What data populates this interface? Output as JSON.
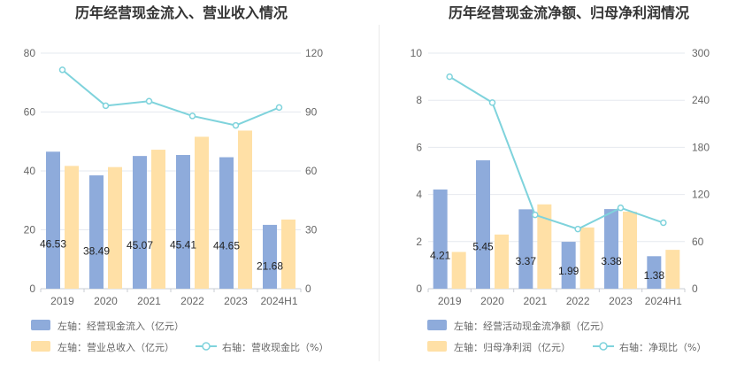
{
  "charts": [
    {
      "title": "历年经营现金流入、营业收入情况",
      "legend": [
        {
          "label": "左轴：经营现金流入（亿元）",
          "kind": "bar",
          "color": "#8eabdb"
        },
        {
          "label": "左轴：营业总收入（亿元）",
          "kind": "bar",
          "color": "#ffe0a6"
        },
        {
          "label": "右轴：营收现金比（%）",
          "kind": "line",
          "color": "#7fd3dc"
        }
      ]
    },
    {
      "title": "历年经营现金流净额、归母净利润情况",
      "legend": [
        {
          "label": "左轴：经营活动现金流净额（亿元）",
          "kind": "bar",
          "color": "#8eabdb"
        },
        {
          "label": "左轴：归母净利润（亿元）",
          "kind": "bar",
          "color": "#ffe0a6"
        },
        {
          "label": "右轴：净现比（%）",
          "kind": "line",
          "color": "#7fd3dc"
        }
      ]
    }
  ],
  "chart_data": [
    {
      "type": "bar",
      "title": "历年经营现金流入、营业收入情况",
      "categories": [
        "2019",
        "2020",
        "2021",
        "2022",
        "2023",
        "2024H1"
      ],
      "series": [
        {
          "name": "左轴：经营现金流入（亿元）",
          "axis": "left",
          "type": "bar",
          "color": "#8eabdb",
          "values": [
            46.53,
            38.49,
            45.07,
            45.41,
            44.65,
            21.68
          ],
          "labels": [
            "46.53",
            "38.49",
            "45.07",
            "45.41",
            "44.65",
            "21.68"
          ]
        },
        {
          "name": "左轴：营业总收入（亿元）",
          "axis": "left",
          "type": "bar",
          "color": "#ffe0a6",
          "values": [
            41.7,
            41.3,
            47.2,
            51.6,
            53.7,
            23.5
          ]
        },
        {
          "name": "右轴：营收现金比（%）",
          "axis": "right",
          "type": "line",
          "color": "#7fd3dc",
          "values": [
            111.5,
            93.2,
            95.5,
            88.0,
            83.2,
            92.3
          ]
        }
      ],
      "left_axis": {
        "min": 0,
        "max": 80,
        "ticks": [
          "0",
          "20",
          "40",
          "60",
          "80"
        ]
      },
      "right_axis": {
        "min": 0,
        "max": 120,
        "ticks": [
          "0",
          "30",
          "60",
          "90",
          "120"
        ]
      },
      "grid": true,
      "legend_position": "bottom"
    },
    {
      "type": "bar",
      "title": "历年经营现金流净额、归母净利润情况",
      "categories": [
        "2019",
        "2020",
        "2021",
        "2022",
        "2023",
        "2024H1"
      ],
      "series": [
        {
          "name": "左轴：经营活动现金流净额（亿元）",
          "axis": "left",
          "type": "bar",
          "color": "#8eabdb",
          "values": [
            4.21,
            5.45,
            3.37,
            1.99,
            3.38,
            1.38
          ],
          "labels": [
            "4.21",
            "5.45",
            "3.37",
            "1.99",
            "3.38",
            "1.38"
          ]
        },
        {
          "name": "左轴：归母净利润（亿元）",
          "axis": "left",
          "type": "bar",
          "color": "#ffe0a6",
          "values": [
            1.56,
            2.3,
            3.58,
            2.6,
            3.27,
            1.65
          ]
        },
        {
          "name": "右轴：净现比（%）",
          "axis": "right",
          "type": "line",
          "color": "#7fd3dc",
          "values": [
            270,
            237,
            94,
            76,
            103,
            84
          ]
        }
      ],
      "left_axis": {
        "min": 0,
        "max": 10,
        "ticks": [
          "0",
          "2",
          "4",
          "6",
          "8",
          "10"
        ]
      },
      "right_axis": {
        "min": 0,
        "max": 300,
        "ticks": [
          "0",
          "60",
          "120",
          "180",
          "240",
          "300"
        ]
      },
      "grid": true,
      "legend_position": "bottom"
    }
  ]
}
